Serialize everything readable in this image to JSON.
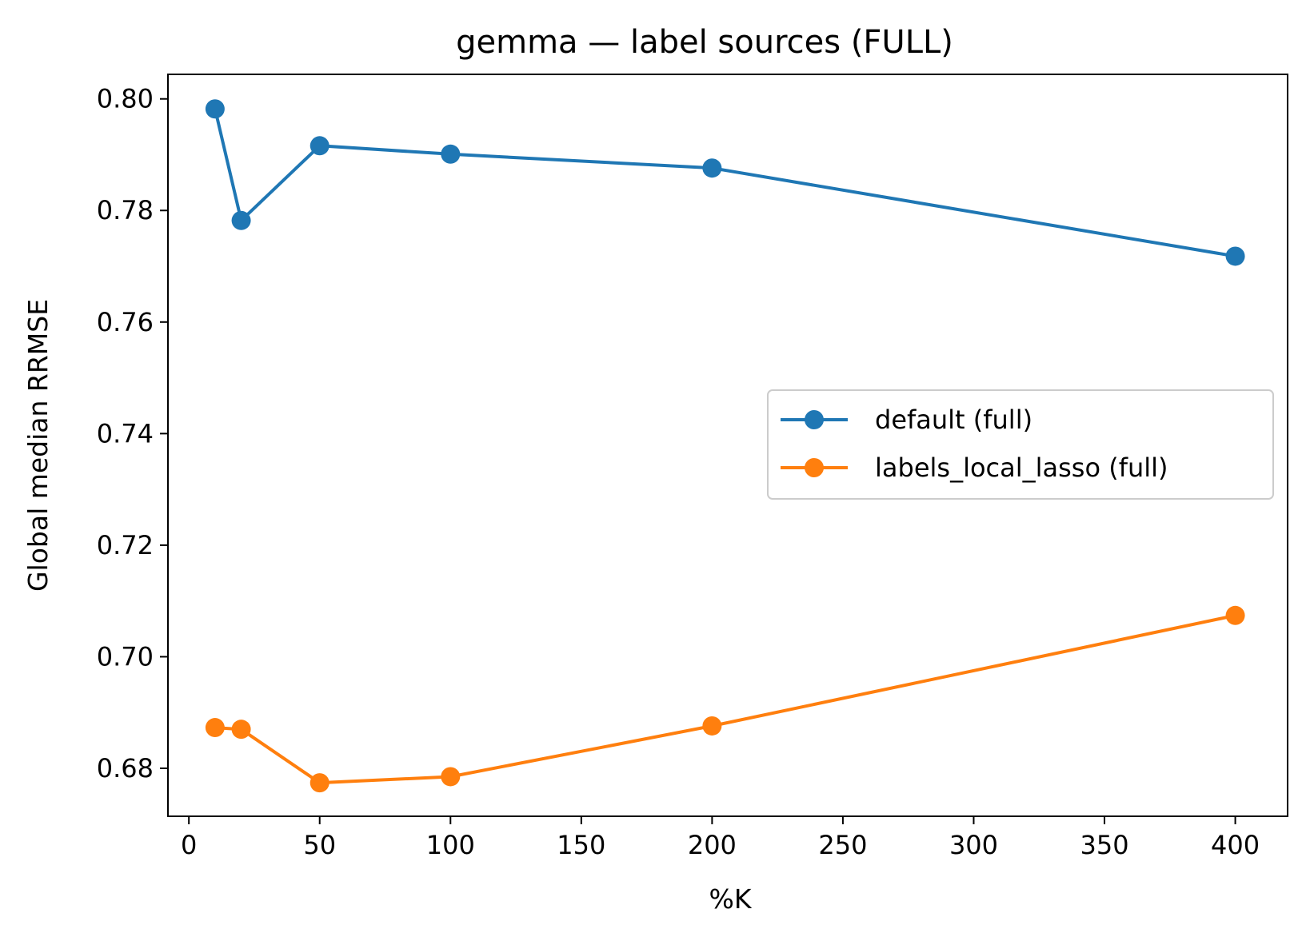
{
  "chart_data": {
    "type": "line",
    "title": "gemma — label sources (FULL)",
    "xlabel": "%K",
    "ylabel": "Global median RRMSE",
    "xlim": [
      -8,
      420
    ],
    "ylim": [
      0.6714,
      0.8044
    ],
    "xticks": [
      0,
      50,
      100,
      150,
      200,
      250,
      300,
      350,
      400
    ],
    "xtick_labels": [
      "0",
      "50",
      "100",
      "150",
      "200",
      "250",
      "300",
      "350",
      "400"
    ],
    "yticks": [
      0.68,
      0.7,
      0.72,
      0.74,
      0.76,
      0.78,
      0.8
    ],
    "ytick_labels": [
      "0.68",
      "0.70",
      "0.72",
      "0.74",
      "0.76",
      "0.78",
      "0.80"
    ],
    "x": [
      10,
      20,
      50,
      100,
      200,
      400
    ],
    "series": [
      {
        "name": "default (full)",
        "color": "#1f77b4",
        "values": [
          0.7982,
          0.7782,
          0.7916,
          0.7901,
          0.7876,
          0.7718
        ]
      },
      {
        "name": "labels_local_lasso (full)",
        "color": "#ff7f0e",
        "values": [
          0.6873,
          0.687,
          0.6774,
          0.6785,
          0.6876,
          0.7074
        ]
      }
    ],
    "grid": false,
    "legend_position": "center-right"
  }
}
